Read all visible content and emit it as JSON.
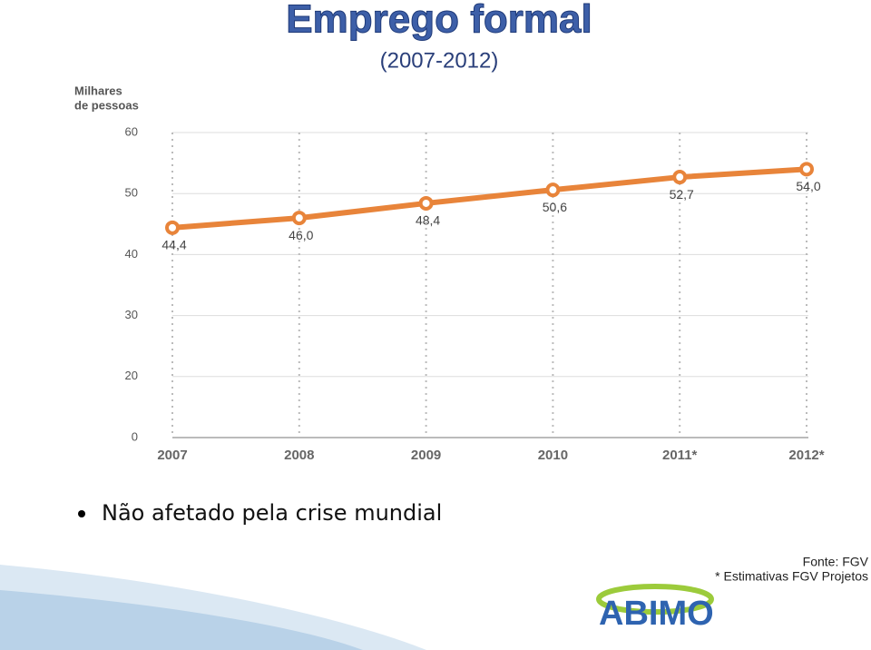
{
  "chart_data": {
    "type": "line",
    "title": "Emprego formal",
    "subtitle": "(2007-2012)",
    "y_label": [
      "Milhares",
      "de pessoas"
    ],
    "categories": [
      "2007",
      "2008",
      "2009",
      "2010",
      "2011*",
      "2012*"
    ],
    "series": [
      {
        "name": "Emprego formal",
        "color": "#e8843a",
        "values": [
          44.4,
          46.0,
          48.4,
          50.6,
          52.7,
          54.0
        ],
        "value_labels": [
          "44,4",
          "46,0",
          "48,4",
          "50,6",
          "52,7",
          "54,0"
        ]
      }
    ],
    "ylim": [
      0,
      60
    ],
    "yticks": [
      0,
      20,
      30,
      40,
      50,
      60
    ],
    "grid": true
  },
  "slide": {
    "bullet": "Não afetado pela crise mundial",
    "notes": [
      "Fonte: FGV",
      "* Estimativas FGV Projetos"
    ],
    "logo": "ABIMO"
  }
}
